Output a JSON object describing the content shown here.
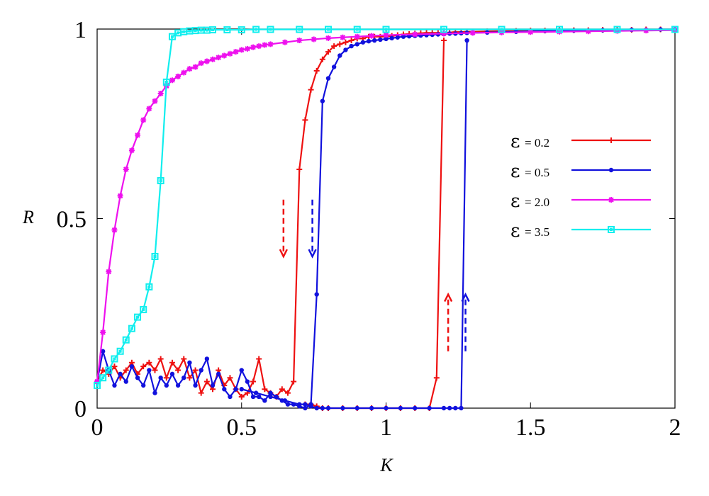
{
  "chart_data": {
    "type": "line",
    "xlabel": "K",
    "ylabel": "R",
    "xlim": [
      0,
      2
    ],
    "ylim": [
      0,
      1
    ],
    "x_ticks": [
      {
        "value": 0,
        "label": "0"
      },
      {
        "value": 0.5,
        "label": "0.5"
      },
      {
        "value": 1,
        "label": "1"
      },
      {
        "value": 1.5,
        "label": "1.5"
      },
      {
        "value": 2,
        "label": "2"
      }
    ],
    "y_ticks": [
      {
        "value": 0,
        "label": "0"
      },
      {
        "value": 0.5,
        "label": "0.5"
      },
      {
        "value": 1,
        "label": "1"
      }
    ],
    "grid": false,
    "legend_position": "right",
    "series": [
      {
        "name": "ε = 0.2",
        "symbol": "ε",
        "value_text": "= 0.2",
        "color": "#ee1111",
        "marker": "plus",
        "x": [
          0,
          0.02,
          0.04,
          0.06,
          0.08,
          0.1,
          0.12,
          0.14,
          0.16,
          0.18,
          0.2,
          0.22,
          0.24,
          0.26,
          0.28,
          0.3,
          0.32,
          0.34,
          0.36,
          0.38,
          0.4,
          0.42,
          0.44,
          0.46,
          0.48,
          0.5,
          0.52,
          0.54,
          0.56,
          0.58,
          0.6,
          0.62,
          0.64,
          0.66,
          0.68,
          0.7,
          0.72,
          0.74,
          0.76,
          0.78,
          0.8,
          0.82,
          0.84,
          0.86,
          0.88,
          0.9,
          0.92,
          0.94,
          0.96,
          0.98,
          1,
          1.02,
          1.04,
          1.06,
          1.08,
          1.1,
          1.12,
          1.14,
          1.16,
          1.18,
          1.2,
          1.22,
          1.24,
          1.26,
          1.28,
          1.3,
          1.35,
          1.4,
          1.45,
          1.5,
          1.55,
          1.6,
          1.65,
          1.7,
          1.75,
          1.8,
          1.85,
          1.9,
          1.95,
          2
        ],
        "y": [
          0.07,
          0.1,
          0.09,
          0.11,
          0.08,
          0.1,
          0.12,
          0.09,
          0.11,
          0.12,
          0.1,
          0.13,
          0.08,
          0.12,
          0.1,
          0.13,
          0.08,
          0.1,
          0.04,
          0.07,
          0.05,
          0.1,
          0.06,
          0.08,
          0.05,
          0.03,
          0.04,
          0.07,
          0.13,
          0.05,
          0.04,
          0.03,
          0.05,
          0.04,
          0.07,
          0.63,
          0.76,
          0.84,
          0.89,
          0.92,
          0.94,
          0.955,
          0.96,
          0.965,
          0.97,
          0.975,
          0.975,
          0.98,
          0.98,
          0.98,
          0.98,
          0.982,
          0.984,
          0.986,
          0.987,
          0.988,
          0.989,
          0.99,
          0.99,
          0.99,
          0.99,
          0.991,
          0.992,
          0.992,
          0.993,
          0.993,
          0.994,
          0.995,
          0.995,
          0.996,
          0.996,
          0.997,
          0.997,
          0.997,
          0.998,
          0.998,
          0.998,
          0.999,
          0.999,
          0.999
        ]
      },
      {
        "name": "ε = 0.2 backward",
        "color": "#ee1111",
        "marker": "plus",
        "legend": false,
        "x": [
          0.72,
          0.74,
          0.76,
          0.78,
          0.8,
          0.85,
          0.9,
          0.95,
          1,
          1.05,
          1.1,
          1.15,
          1.175,
          1.2
        ],
        "y": [
          0.01,
          0.01,
          0.005,
          0,
          0,
          0,
          0,
          0,
          0,
          0,
          0,
          0,
          0.08,
          0.97
        ]
      },
      {
        "name": "ε = 0.5",
        "symbol": "ε",
        "value_text": "= 0.5",
        "color": "#1111dd",
        "marker": "circle",
        "x": [
          0,
          0.02,
          0.04,
          0.06,
          0.08,
          0.1,
          0.12,
          0.14,
          0.16,
          0.18,
          0.2,
          0.22,
          0.24,
          0.26,
          0.28,
          0.3,
          0.32,
          0.34,
          0.36,
          0.38,
          0.4,
          0.42,
          0.44,
          0.46,
          0.48,
          0.5,
          0.52,
          0.54,
          0.56,
          0.58,
          0.6,
          0.62,
          0.64,
          0.66,
          0.68,
          0.7,
          0.72,
          0.74,
          0.76,
          0.78,
          0.8,
          0.82,
          0.84,
          0.86,
          0.88,
          0.9,
          0.92,
          0.94,
          0.96,
          0.98,
          1,
          1.02,
          1.04,
          1.06,
          1.08,
          1.1,
          1.12,
          1.14,
          1.16,
          1.18,
          1.2,
          1.22,
          1.24,
          1.26,
          1.28,
          1.3,
          1.35,
          1.4,
          1.45,
          1.5,
          1.55,
          1.6,
          1.65,
          1.7,
          1.75,
          1.8,
          1.85,
          1.9,
          1.95,
          2
        ],
        "y": [
          0.07,
          0.15,
          0.1,
          0.06,
          0.09,
          0.07,
          0.11,
          0.08,
          0.06,
          0.1,
          0.04,
          0.08,
          0.06,
          0.09,
          0.06,
          0.08,
          0.12,
          0.06,
          0.1,
          0.13,
          0.06,
          0.09,
          0.05,
          0.03,
          0.05,
          0.1,
          0.07,
          0.03,
          0.03,
          0.02,
          0.04,
          0.03,
          0.02,
          0.01,
          0.01,
          0.005,
          0,
          0.01,
          0.3,
          0.81,
          0.87,
          0.9,
          0.93,
          0.945,
          0.955,
          0.96,
          0.965,
          0.968,
          0.97,
          0.972,
          0.974,
          0.976,
          0.978,
          0.98,
          0.981,
          0.982,
          0.983,
          0.984,
          0.985,
          0.986,
          0.987,
          0.988,
          0.988,
          0.989,
          0.99,
          0.99,
          0.991,
          0.992,
          0.993,
          0.994,
          0.995,
          0.995,
          0.996,
          0.996,
          0.997,
          0.997,
          0.998,
          0.998,
          0.999,
          0.999
        ]
      },
      {
        "name": "ε = 0.5 backward",
        "color": "#1111dd",
        "marker": "circle",
        "legend": false,
        "x": [
          0.5,
          0.55,
          0.6,
          0.65,
          0.7,
          0.72,
          0.74,
          0.76,
          0.78,
          0.8,
          0.85,
          0.9,
          0.95,
          1,
          1.05,
          1.1,
          1.15,
          1.2,
          1.22,
          1.24,
          1.26,
          1.28
        ],
        "y": [
          0.05,
          0.04,
          0.03,
          0.02,
          0.01,
          0.01,
          0.005,
          0,
          0,
          0,
          0,
          0,
          0,
          0,
          0,
          0,
          0,
          0,
          0,
          0,
          0,
          0.97
        ]
      },
      {
        "name": "ε = 2.0",
        "symbol": "ε",
        "value_text": "= 2.0",
        "color": "#ee11ee",
        "marker": "star",
        "x": [
          0,
          0.02,
          0.04,
          0.06,
          0.08,
          0.1,
          0.12,
          0.14,
          0.16,
          0.18,
          0.2,
          0.22,
          0.24,
          0.26,
          0.28,
          0.3,
          0.32,
          0.34,
          0.36,
          0.38,
          0.4,
          0.42,
          0.44,
          0.46,
          0.48,
          0.5,
          0.52,
          0.54,
          0.56,
          0.58,
          0.6,
          0.65,
          0.7,
          0.75,
          0.8,
          0.85,
          0.9,
          0.95,
          1,
          1.1,
          1.2,
          1.3,
          1.4,
          1.5,
          1.6,
          1.7,
          1.8,
          1.9,
          2
        ],
        "y": [
          0.07,
          0.2,
          0.36,
          0.47,
          0.56,
          0.63,
          0.68,
          0.72,
          0.76,
          0.79,
          0.81,
          0.83,
          0.85,
          0.865,
          0.875,
          0.885,
          0.895,
          0.9,
          0.91,
          0.915,
          0.92,
          0.925,
          0.93,
          0.935,
          0.94,
          0.945,
          0.948,
          0.952,
          0.955,
          0.958,
          0.96,
          0.965,
          0.97,
          0.973,
          0.976,
          0.978,
          0.98,
          0.982,
          0.984,
          0.986,
          0.988,
          0.99,
          0.991,
          0.992,
          0.993,
          0.994,
          0.995,
          0.996,
          0.997
        ]
      },
      {
        "name": "ε = 3.5",
        "symbol": "ε",
        "value_text": "= 3.5",
        "color": "#11eeee",
        "marker": "square",
        "x": [
          0,
          0.02,
          0.04,
          0.06,
          0.08,
          0.1,
          0.12,
          0.14,
          0.16,
          0.18,
          0.2,
          0.22,
          0.24,
          0.26,
          0.28,
          0.3,
          0.32,
          0.34,
          0.36,
          0.38,
          0.4,
          0.45,
          0.5,
          0.55,
          0.6,
          0.7,
          0.8,
          0.9,
          1,
          1.2,
          1.4,
          1.6,
          1.8,
          2
        ],
        "y": [
          0.06,
          0.08,
          0.1,
          0.13,
          0.15,
          0.18,
          0.21,
          0.24,
          0.26,
          0.32,
          0.4,
          0.6,
          0.86,
          0.98,
          0.99,
          0.993,
          0.995,
          0.996,
          0.997,
          0.997,
          0.998,
          0.998,
          0.998,
          0.999,
          0.999,
          0.999,
          0.999,
          0.999,
          0.999,
          0.999,
          0.999,
          0.999,
          0.999,
          0.999
        ]
      }
    ],
    "arrows": [
      {
        "color": "#ee1111",
        "x": 0.645,
        "y_from": 0.55,
        "y_to": 0.4,
        "direction": "down"
      },
      {
        "color": "#1111dd",
        "x": 0.745,
        "y_from": 0.55,
        "y_to": 0.4,
        "direction": "down"
      },
      {
        "color": "#ee1111",
        "x": 1.215,
        "y_from": 0.15,
        "y_to": 0.3,
        "direction": "up"
      },
      {
        "color": "#1111dd",
        "x": 1.275,
        "y_from": 0.15,
        "y_to": 0.3,
        "direction": "up"
      }
    ]
  }
}
